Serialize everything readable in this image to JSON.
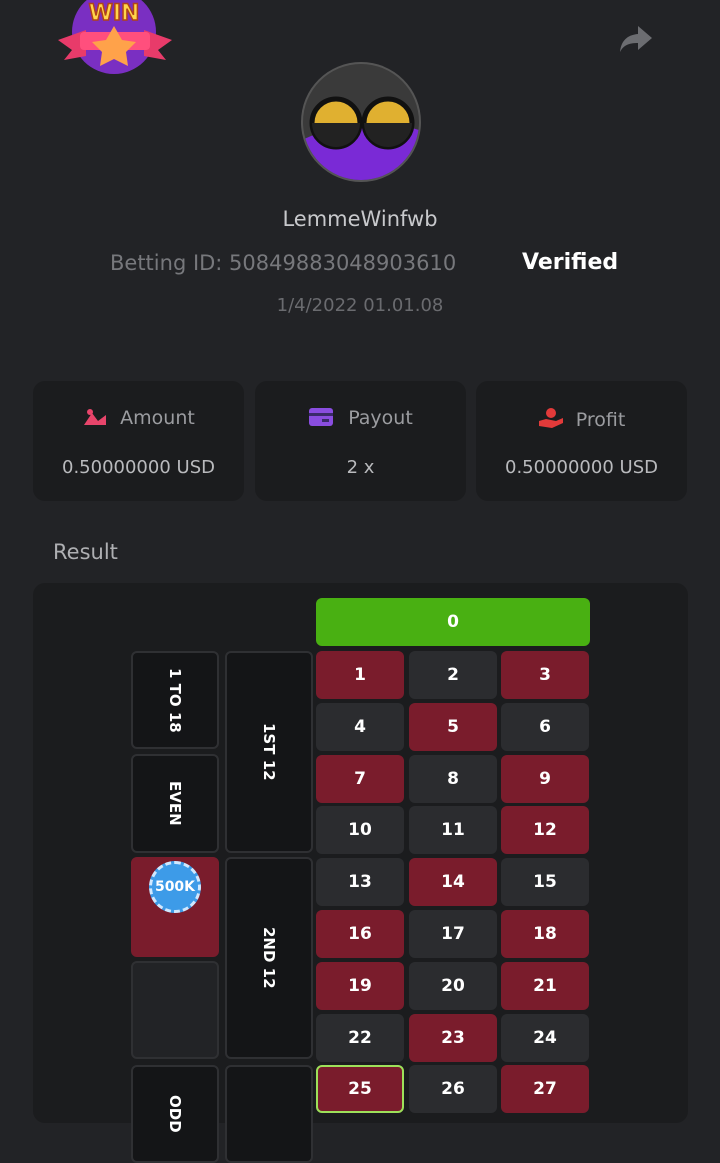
{
  "header": {
    "badge": "WIN",
    "username": "LemmeWinfwb",
    "betting_id": "Betting ID: 5084988304890361​0",
    "verified": "Verified",
    "date": "1/4/2022 01.01.08"
  },
  "stats": [
    {
      "label": "Amount",
      "value": "0.50000000 USD"
    },
    {
      "label": "Payout",
      "value": "2 x"
    },
    {
      "label": "Profit",
      "value": "0.50000000 USD"
    }
  ],
  "result": {
    "title": "Result",
    "zero": "0",
    "cells": [
      {
        "label": "1",
        "color": "red"
      },
      {
        "label": "2",
        "color": "black"
      },
      {
        "label": "3",
        "color": "red"
      },
      {
        "label": "4",
        "color": "black"
      },
      {
        "label": "5",
        "color": "red"
      },
      {
        "label": "6",
        "color": "black"
      },
      {
        "label": "7",
        "color": "red"
      },
      {
        "label": "8",
        "color": "black"
      },
      {
        "label": "9",
        "color": "red"
      },
      {
        "label": "10",
        "color": "black"
      },
      {
        "label": "11",
        "color": "black"
      },
      {
        "label": "12",
        "color": "red"
      },
      {
        "label": "13",
        "color": "black"
      },
      {
        "label": "14",
        "color": "red"
      },
      {
        "label": "15",
        "color": "black"
      },
      {
        "label": "16",
        "color": "red"
      },
      {
        "label": "17",
        "color": "black"
      },
      {
        "label": "18",
        "color": "red"
      },
      {
        "label": "19",
        "color": "red"
      },
      {
        "label": "20",
        "color": "black"
      },
      {
        "label": "21",
        "color": "red"
      },
      {
        "label": "22",
        "color": "black"
      },
      {
        "label": "23",
        "color": "red"
      },
      {
        "label": "24",
        "color": "black"
      },
      {
        "label": "25",
        "color": "red",
        "winning": true
      },
      {
        "label": "26",
        "color": "black"
      },
      {
        "label": "27",
        "color": "red"
      }
    ],
    "outside": [
      "1 TO 18",
      "EVEN",
      "ODD"
    ],
    "dozens": [
      "1ST 12",
      "2ND 12"
    ],
    "chip": "500K"
  }
}
